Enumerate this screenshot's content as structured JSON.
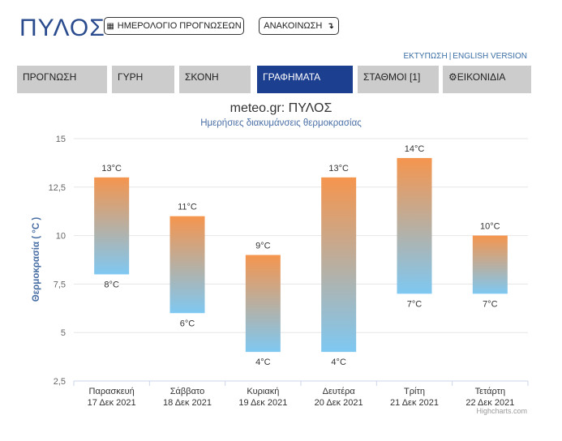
{
  "header": {
    "title": "ΠΥΛΟΣ",
    "calendar_button": "ΗΜΕΡΟΛΟΓΙΟ ΠΡΟΓΝΩΣΕΩΝ",
    "announcement_button": "ΑΝΑΚΟΙΝΩΣΗ",
    "calendar_icon": "calendar-icon",
    "arrow_icon": "turn-arrow-icon",
    "print_link": "ΕΚΤΥΠΩΣΗ",
    "separator": "|",
    "english_link": "ENGLISH VERSION"
  },
  "tabs": [
    {
      "label": "ΠΡΟΓΝΩΣΗ",
      "active": false
    },
    {
      "label": "ΓΥΡΗ",
      "active": false
    },
    {
      "label": "ΣΚΟΝΗ",
      "active": false
    },
    {
      "label": "ΓΡΑΦΗΜΑΤΑ",
      "active": true
    },
    {
      "label": "ΣΤΑΘΜΟΙ [1]",
      "active": false
    },
    {
      "label": "ΕΙΚΟΝΙΔΙΑ",
      "active": false,
      "icon": "gear-icon"
    }
  ],
  "colors": {
    "title": "#2a4b8d",
    "active_tab": "#1d3f8f",
    "bar_top": "#f5954e",
    "bar_bottom": "#7ec8f2"
  },
  "chart_data": {
    "type": "bar",
    "subtype": "columnrange",
    "title": "meteo.gr: ΠΥΛΟΣ",
    "subtitle": "Ημερήσιες διακυμάνσεις θερμοκρασίας",
    "ylabel": "Θερμοκρασία ( °C )",
    "ylim": [
      2.5,
      15
    ],
    "yticks": [
      "2,5",
      "5",
      "7,5",
      "10",
      "12,5",
      "15"
    ],
    "ytick_values": [
      2.5,
      5,
      7.5,
      10,
      12.5,
      15
    ],
    "grid": true,
    "categories": [
      {
        "day": "Παρασκευή",
        "date": "17 Δεκ 2021"
      },
      {
        "day": "Σάββατο",
        "date": "18 Δεκ 2021"
      },
      {
        "day": "Κυριακή",
        "date": "19 Δεκ 2021"
      },
      {
        "day": "Δευτέρα",
        "date": "20 Δεκ 2021"
      },
      {
        "day": "Τρίτη",
        "date": "21 Δεκ 2021"
      },
      {
        "day": "Τετάρτη",
        "date": "22 Δεκ 2021"
      }
    ],
    "min": [
      8,
      6,
      4,
      4,
      7,
      7
    ],
    "max": [
      13,
      11,
      9,
      13,
      14,
      10
    ],
    "min_labels": [
      "8°C",
      "6°C",
      "4°C",
      "4°C",
      "7°C",
      "7°C"
    ],
    "max_labels": [
      "13°C",
      "11°C",
      "9°C",
      "13°C",
      "14°C",
      "10°C"
    ],
    "credit": "Highcharts.com"
  }
}
